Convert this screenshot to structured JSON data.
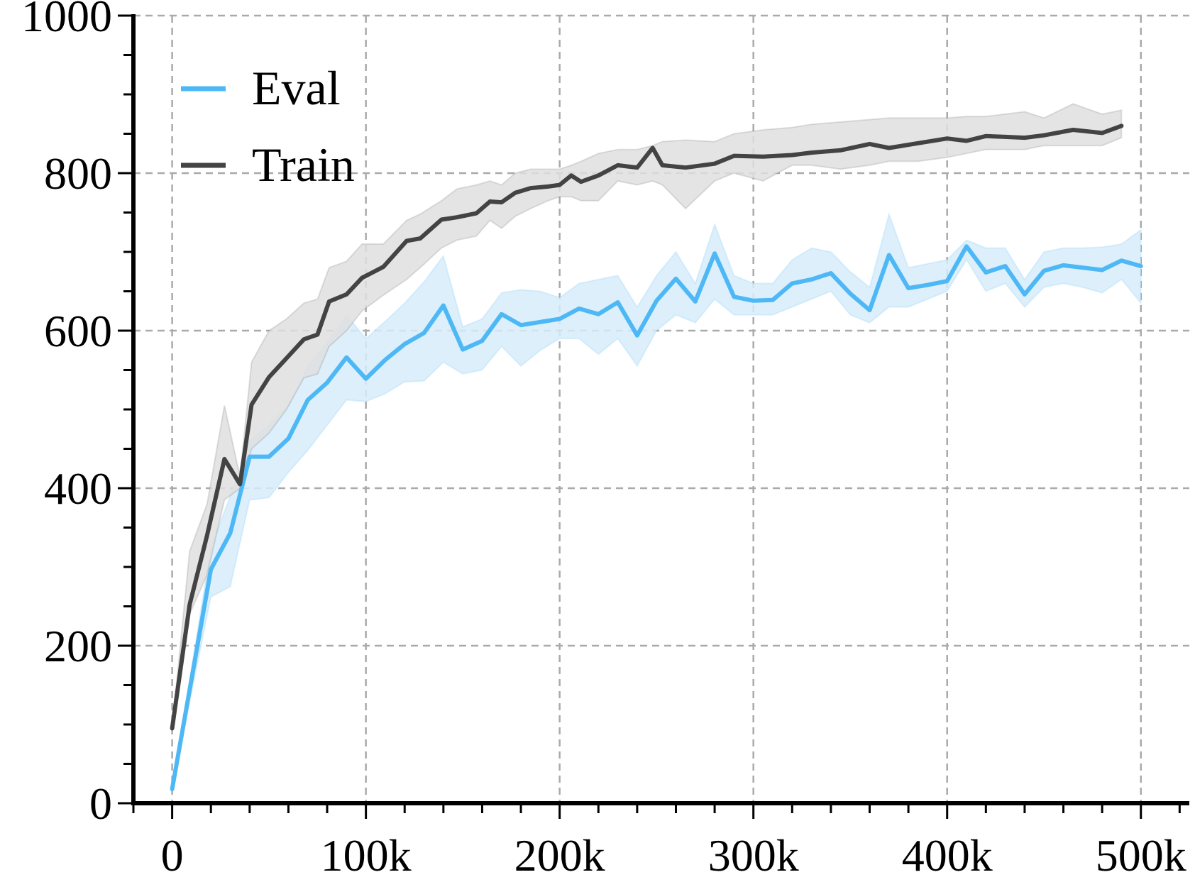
{
  "chart_data": {
    "type": "line",
    "title": "",
    "xlabel": "",
    "ylabel": "",
    "xlim": [
      -20000,
      525000
    ],
    "ylim": [
      0,
      1000
    ],
    "grid": true,
    "legend_position": "top-left",
    "x_ticks": [
      0,
      100000,
      200000,
      300000,
      400000,
      500000
    ],
    "x_tick_labels": [
      "0",
      "100k",
      "200k",
      "300k",
      "400k",
      "500k"
    ],
    "y_ticks": [
      0,
      200,
      400,
      600,
      800,
      1000
    ],
    "y_tick_labels": [
      "0",
      "200",
      "400",
      "600",
      "800",
      "1000"
    ],
    "series": [
      {
        "name": "Eval",
        "color": "#4db8f5",
        "band_color": "#d6ecfa",
        "x": [
          0,
          20000,
          30000,
          40000,
          50000,
          60000,
          70000,
          80000,
          90000,
          100000,
          110000,
          120000,
          130000,
          140000,
          150000,
          160000,
          170000,
          180000,
          190000,
          200000,
          210000,
          220000,
          230000,
          240000,
          250000,
          260000,
          270000,
          280000,
          290000,
          300000,
          310000,
          320000,
          330000,
          340000,
          350000,
          360000,
          370000,
          380000,
          390000,
          400000,
          410000,
          420000,
          430000,
          440000,
          450000,
          460000,
          470000,
          480000,
          490000,
          500000
        ],
        "y": [
          18,
          297,
          343,
          440,
          440,
          463,
          512,
          534,
          566,
          539,
          563,
          583,
          597,
          632,
          576,
          587,
          621,
          607,
          611,
          615,
          628,
          621,
          636,
          594,
          638,
          666,
          637,
          698,
          643,
          638,
          639,
          660,
          665,
          673,
          647,
          626,
          696,
          654,
          658,
          663,
          707,
          674,
          682,
          646,
          676,
          683,
          680,
          677,
          689,
          682
        ],
        "y_lower": [
          18,
          262,
          275,
          385,
          388,
          420,
          448,
          480,
          512,
          510,
          520,
          535,
          536,
          560,
          545,
          550,
          580,
          555,
          575,
          590,
          590,
          570,
          590,
          555,
          600,
          620,
          610,
          640,
          620,
          620,
          620,
          630,
          640,
          650,
          620,
          610,
          630,
          630,
          640,
          650,
          690,
          650,
          660,
          630,
          655,
          660,
          655,
          648,
          665,
          635
        ],
        "y_upper": [
          18,
          325,
          390,
          460,
          480,
          505,
          555,
          585,
          620,
          590,
          612,
          635,
          662,
          695,
          605,
          615,
          648,
          652,
          650,
          642,
          660,
          665,
          670,
          630,
          670,
          700,
          660,
          735,
          670,
          660,
          660,
          690,
          705,
          700,
          675,
          655,
          748,
          680,
          685,
          690,
          715,
          705,
          705,
          665,
          700,
          705,
          705,
          706,
          710,
          728
        ]
      },
      {
        "name": "Train",
        "color": "#434343",
        "band_color": "#dfdfdf",
        "x": [
          0,
          9000,
          18000,
          27000,
          35000,
          41000,
          50000,
          59000,
          68000,
          75000,
          81000,
          90000,
          98000,
          109000,
          121000,
          128000,
          139000,
          147000,
          157000,
          164000,
          170000,
          177000,
          185000,
          194000,
          200000,
          206000,
          211000,
          220000,
          230000,
          240000,
          248000,
          253000,
          265000,
          280000,
          290000,
          305000,
          320000,
          330000,
          345000,
          360000,
          370000,
          385000,
          400000,
          410000,
          420000,
          430000,
          440000,
          450000,
          465000,
          480000,
          490000
        ],
        "y": [
          95,
          252,
          340,
          437,
          405,
          506,
          541,
          565,
          589,
          595,
          637,
          646,
          667,
          681,
          714,
          717,
          741,
          744,
          749,
          764,
          763,
          775,
          781,
          783,
          785,
          797,
          789,
          797,
          810,
          807,
          832,
          810,
          807,
          812,
          822,
          821,
          823,
          826,
          829,
          837,
          832,
          838,
          844,
          841,
          847,
          846,
          845,
          848,
          855,
          851,
          860
        ],
        "y_lower": [
          95,
          240,
          290,
          385,
          400,
          450,
          470,
          500,
          540,
          545,
          580,
          600,
          625,
          645,
          665,
          680,
          705,
          715,
          720,
          740,
          730,
          745,
          755,
          765,
          770,
          770,
          765,
          765,
          790,
          785,
          790,
          785,
          755,
          790,
          800,
          790,
          810,
          810,
          805,
          810,
          815,
          815,
          820,
          825,
          830,
          830,
          830,
          835,
          835,
          835,
          845
        ],
        "y_upper": [
          95,
          320,
          380,
          505,
          415,
          560,
          600,
          615,
          635,
          640,
          680,
          688,
          710,
          710,
          740,
          748,
          765,
          780,
          785,
          790,
          785,
          800,
          805,
          805,
          805,
          810,
          815,
          825,
          830,
          830,
          835,
          840,
          842,
          840,
          850,
          855,
          858,
          862,
          865,
          868,
          870,
          870,
          870,
          872,
          872,
          875,
          878,
          870,
          888,
          875,
          880
        ]
      }
    ]
  }
}
